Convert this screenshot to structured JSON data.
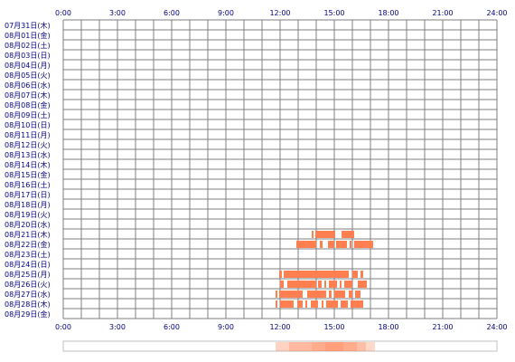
{
  "colors": {
    "grid": "#7f7f7f",
    "bar": "#ff7f50",
    "label": "#000080",
    "heat": "#ff7f50"
  },
  "chart_data": {
    "type": "bar",
    "title": "",
    "xlabel": "",
    "ylabel": "",
    "xlim": [
      0,
      24
    ],
    "x_ticks": [
      "0:00",
      "3:00",
      "6:00",
      "9:00",
      "12:00",
      "15:00",
      "18:00",
      "21:00",
      "24:00"
    ],
    "grid": true,
    "rows": [
      {
        "label": "07月31日(木)",
        "intervals": []
      },
      {
        "label": "08月01日(金)",
        "intervals": []
      },
      {
        "label": "08月02日(土)",
        "intervals": []
      },
      {
        "label": "08月03日(日)",
        "intervals": []
      },
      {
        "label": "08月04日(月)",
        "intervals": []
      },
      {
        "label": "08月05日(火)",
        "intervals": []
      },
      {
        "label": "08月06日(水)",
        "intervals": []
      },
      {
        "label": "08月07日(木)",
        "intervals": []
      },
      {
        "label": "08月08日(金)",
        "intervals": []
      },
      {
        "label": "08月09日(土)",
        "intervals": []
      },
      {
        "label": "08月10日(日)",
        "intervals": []
      },
      {
        "label": "08月11日(月)",
        "intervals": []
      },
      {
        "label": "08月12日(火)",
        "intervals": []
      },
      {
        "label": "08月13日(水)",
        "intervals": []
      },
      {
        "label": "08月14日(木)",
        "intervals": []
      },
      {
        "label": "08月15日(金)",
        "intervals": []
      },
      {
        "label": "08月16日(土)",
        "intervals": []
      },
      {
        "label": "08月17日(日)",
        "intervals": []
      },
      {
        "label": "08月18日(月)",
        "intervals": []
      },
      {
        "label": "08月19日(火)",
        "intervals": []
      },
      {
        "label": "08月20日(水)",
        "intervals": []
      },
      {
        "label": "08月21日(木)",
        "intervals": [
          [
            13.75,
            13.85
          ],
          [
            13.95,
            15.05
          ],
          [
            15.4,
            16.1
          ]
        ]
      },
      {
        "label": "08月22日(金)",
        "intervals": [
          [
            12.9,
            14.0
          ],
          [
            14.2,
            14.35
          ],
          [
            14.65,
            15.0
          ],
          [
            15.1,
            15.7
          ],
          [
            15.85,
            15.95
          ],
          [
            16.1,
            17.15
          ]
        ]
      },
      {
        "label": "08月23日(土)",
        "intervals": []
      },
      {
        "label": "08月24日(日)",
        "intervals": []
      },
      {
        "label": "08月25日(月)",
        "intervals": [
          [
            11.95,
            12.1
          ],
          [
            12.2,
            15.8
          ],
          [
            16.0,
            16.3
          ],
          [
            16.45,
            16.6
          ]
        ]
      },
      {
        "label": "08月26日(火)",
        "intervals": [
          [
            12.0,
            12.2
          ],
          [
            12.4,
            14.0
          ],
          [
            14.1,
            14.3
          ],
          [
            14.45,
            14.55
          ],
          [
            14.7,
            15.15
          ],
          [
            15.3,
            15.4
          ],
          [
            15.55,
            16.0
          ],
          [
            16.3,
            16.8
          ]
        ]
      },
      {
        "label": "08月27日(水)",
        "intervals": [
          [
            11.75,
            11.85
          ],
          [
            11.95,
            13.25
          ],
          [
            13.5,
            14.55
          ],
          [
            14.7,
            14.85
          ],
          [
            15.0,
            15.6
          ],
          [
            15.8,
            16.0
          ],
          [
            16.15,
            16.45
          ]
        ]
      },
      {
        "label": "08月28日(木)",
        "intervals": [
          [
            11.75,
            11.85
          ],
          [
            12.0,
            12.75
          ],
          [
            12.95,
            13.25
          ],
          [
            13.4,
            13.5
          ],
          [
            13.7,
            14.1
          ],
          [
            14.3,
            14.4
          ],
          [
            14.55,
            15.2
          ],
          [
            15.35,
            15.75
          ],
          [
            15.9,
            16.6
          ]
        ]
      },
      {
        "label": "08月29日(金)",
        "intervals": []
      }
    ],
    "activity_strip": [
      {
        "range": [
          11.75,
          12.5
        ],
        "opacity": 0.35
      },
      {
        "range": [
          12.5,
          13.75
        ],
        "opacity": 0.55
      },
      {
        "range": [
          13.75,
          14.5
        ],
        "opacity": 0.65
      },
      {
        "range": [
          14.5,
          15.5
        ],
        "opacity": 0.75
      },
      {
        "range": [
          15.5,
          16.25
        ],
        "opacity": 0.65
      },
      {
        "range": [
          16.25,
          16.75
        ],
        "opacity": 0.5
      },
      {
        "range": [
          16.75,
          17.25
        ],
        "opacity": 0.3
      }
    ]
  }
}
